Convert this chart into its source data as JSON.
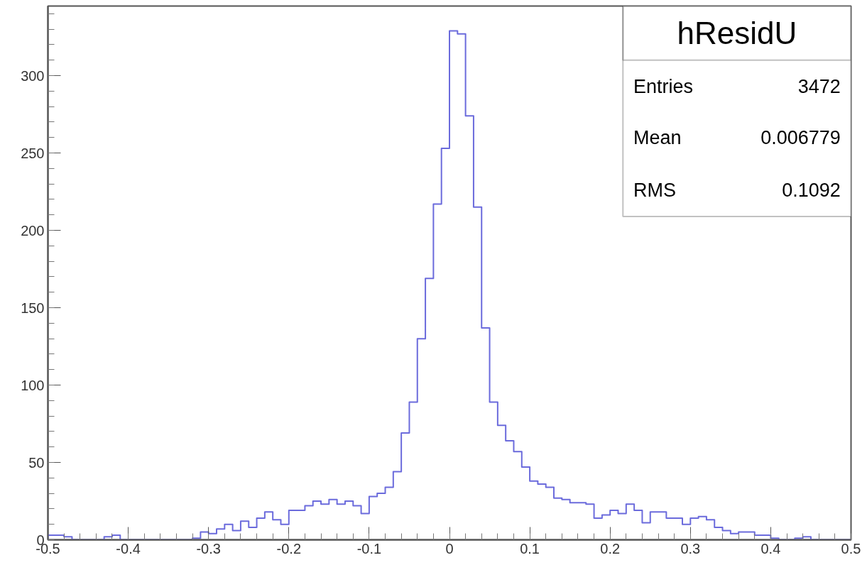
{
  "chart_data": {
    "type": "histogram",
    "title": "hResidU",
    "bins": [
      -0.5,
      -0.49,
      -0.48,
      -0.47,
      -0.46,
      -0.45,
      -0.44,
      -0.43,
      -0.42,
      -0.41,
      -0.4,
      -0.39,
      -0.38,
      -0.37,
      -0.36,
      -0.35,
      -0.34,
      -0.33,
      -0.32,
      -0.31,
      -0.3,
      -0.29,
      -0.28,
      -0.27,
      -0.26,
      -0.25,
      -0.24,
      -0.23,
      -0.22,
      -0.21,
      -0.2,
      -0.19,
      -0.18,
      -0.17,
      -0.16,
      -0.15,
      -0.14,
      -0.13,
      -0.12,
      -0.11,
      -0.1,
      -0.09,
      -0.08,
      -0.07,
      -0.06,
      -0.05,
      -0.04,
      -0.03,
      -0.02,
      -0.01,
      0,
      0.01,
      0.02,
      0.03,
      0.04,
      0.05,
      0.06,
      0.07,
      0.08,
      0.09,
      0.1,
      0.11,
      0.12,
      0.13,
      0.14,
      0.15,
      0.16,
      0.17,
      0.18,
      0.19,
      0.2,
      0.21,
      0.22,
      0.23,
      0.24,
      0.25,
      0.26,
      0.27,
      0.28,
      0.29,
      0.3,
      0.31,
      0.32,
      0.33,
      0.34,
      0.35,
      0.36,
      0.37,
      0.38,
      0.39,
      0.4,
      0.41,
      0.42,
      0.43,
      0.44,
      0.45,
      0.46,
      0.47,
      0.48,
      0.49,
      0.5
    ],
    "values": [
      3,
      3,
      2,
      0,
      0,
      0,
      0,
      2,
      3,
      0,
      0,
      0,
      0,
      0,
      0,
      0,
      0,
      0,
      1,
      5,
      4,
      7,
      10,
      6,
      12,
      8,
      14,
      18,
      13,
      10,
      19,
      19,
      22,
      25,
      23,
      26,
      23,
      25,
      22,
      17,
      28,
      30,
      34,
      44,
      69,
      89,
      130,
      169,
      217,
      253,
      329,
      327,
      274,
      215,
      137,
      89,
      74,
      64,
      57,
      47,
      38,
      36,
      34,
      27,
      26,
      24,
      24,
      23,
      14,
      16,
      19,
      17,
      23,
      19,
      11,
      18,
      18,
      14,
      14,
      10,
      14,
      15,
      13,
      8,
      6,
      4,
      5,
      5,
      3,
      3,
      1,
      0,
      0,
      1,
      2,
      0,
      0,
      0,
      0,
      0
    ],
    "color": "#6b6bdc",
    "xlim": [
      -0.5,
      0.5
    ],
    "xticks": [
      -0.5,
      -0.4,
      -0.3,
      -0.2,
      -0.1,
      0,
      0.1,
      0.2,
      0.3,
      0.4,
      0.5
    ],
    "ylim": [
      0,
      345
    ],
    "yticks": [
      0,
      50,
      100,
      150,
      200,
      250,
      300
    ],
    "annotations": [
      "Entries",
      "3472",
      "Mean",
      "0.006779",
      "RMS",
      "0.1092"
    ],
    "grid": false
  }
}
